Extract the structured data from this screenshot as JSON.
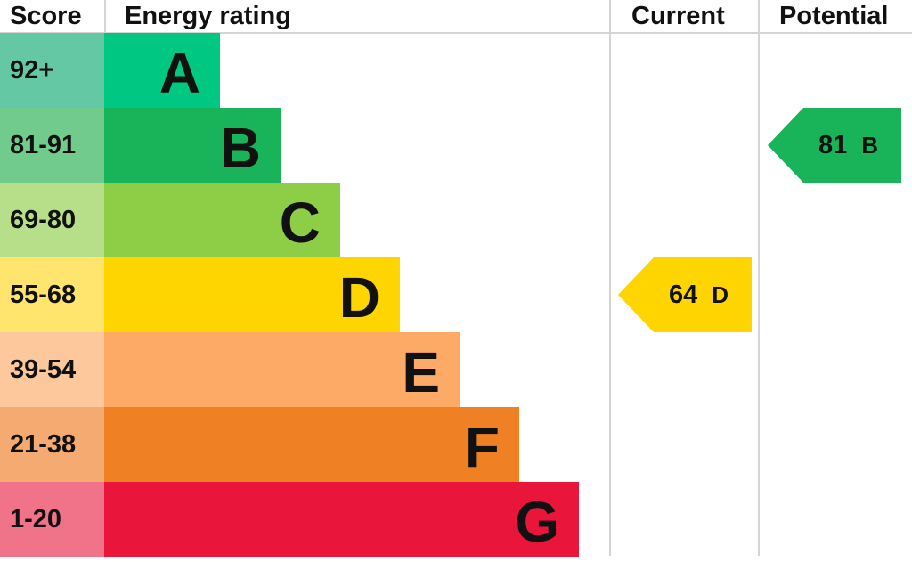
{
  "headers": {
    "score": "Score",
    "rating": "Energy rating",
    "current": "Current",
    "potential": "Potential"
  },
  "chart_data": {
    "type": "bar",
    "bands": [
      {
        "letter": "A",
        "range": "92+",
        "color": "#00c781",
        "score_color": "#64c8a4"
      },
      {
        "letter": "B",
        "range": "81-91",
        "color": "#19b459",
        "score_color": "#70cb8c"
      },
      {
        "letter": "C",
        "range": "69-80",
        "color": "#8dce46",
        "score_color": "#b7df8a"
      },
      {
        "letter": "D",
        "range": "55-68",
        "color": "#ffd500",
        "score_color": "#ffe46e"
      },
      {
        "letter": "E",
        "range": "39-54",
        "color": "#fcaa65",
        "score_color": "#fdc89c"
      },
      {
        "letter": "F",
        "range": "21-38",
        "color": "#ef8023",
        "score_color": "#f4aa70"
      },
      {
        "letter": "G",
        "range": "1-20",
        "color": "#e9153b",
        "score_color": "#f1738a"
      }
    ],
    "current": {
      "value": "64",
      "letter": "D",
      "color": "#ffd500"
    },
    "potential": {
      "value": "81",
      "letter": "B",
      "color": "#19b459"
    }
  }
}
